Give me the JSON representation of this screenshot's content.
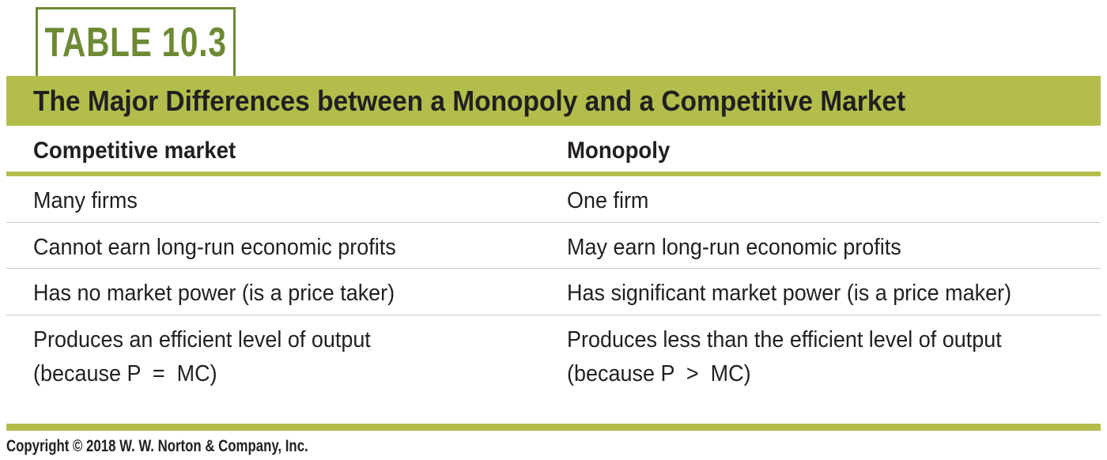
{
  "table_label": "TABLE 10.3",
  "title": "The Major Differences between a Monopoly and a Competitive Market",
  "headers": [
    "Competitive market",
    "Monopoly"
  ],
  "rows": [
    {
      "competitive": "Many firms",
      "monopoly": "One firm"
    },
    {
      "competitive": "Cannot earn long-run economic profits",
      "monopoly": "May earn long-run economic profits"
    },
    {
      "competitive": "Has no market power (is a price taker)",
      "monopoly": "Has significant market power (is a price maker)"
    },
    {
      "competitive": "Produces an efficient level of output",
      "competitive_note": "(because P  =  MC)",
      "monopoly": "Produces less than the efficient level of output",
      "monopoly_note": "(because P  >  MC)"
    }
  ],
  "copyright": "Copyright © 2018 W. W. Norton & Company, Inc.",
  "colors": {
    "accent_green": "#6d8a34",
    "band_green": "#b3bd4c",
    "text": "#231f20"
  }
}
